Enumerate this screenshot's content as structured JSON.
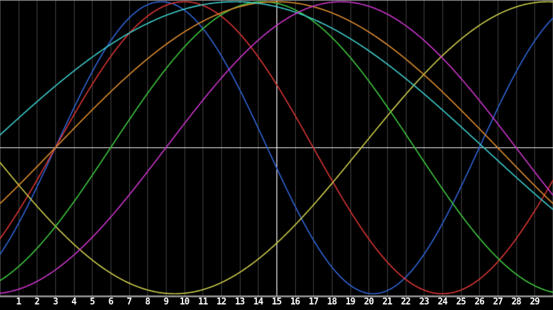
{
  "chart_data": {
    "type": "line",
    "title": "",
    "description": "Seven full-height sine waves of different periods and phases on a black background, with vertical gray gridlines at every x unit, a white horizontal zero axis, a white vertical line at x=15, gray top and bottom borders, and numeric x tick labels below the axis bar.",
    "formula": "y = sin(2*PI*(x - zero_cross_up)/period), x in axis units",
    "x_axis": {
      "range_units": [
        0,
        30
      ],
      "tick_labels": [
        "1",
        "2",
        "3",
        "4",
        "5",
        "6",
        "7",
        "8",
        "9",
        "10",
        "11",
        "12",
        "13",
        "14",
        "15",
        "16",
        "17",
        "18",
        "19",
        "20",
        "21",
        "22",
        "23",
        "24",
        "25",
        "26",
        "27",
        "28",
        "29"
      ],
      "grid": true
    },
    "y_axis": {
      "range": [
        -1,
        1
      ],
      "axis_line_value": 0,
      "grid": false
    },
    "crosshair": {
      "vertical_line_x_units": 15,
      "horizontal_line_y_value": 0
    },
    "series": [
      {
        "name": "blue-sine",
        "color": "#2f63d2",
        "period": 23,
        "zero_cross_up": 3,
        "amplitude": 1
      },
      {
        "name": "red-sine",
        "color": "#d63434",
        "period": 28,
        "zero_cross_up": 3,
        "amplitude": 1
      },
      {
        "name": "yellow-sine",
        "color": "#c9c94a",
        "period": 40.5,
        "zero_cross_up": 19.6,
        "amplitude": 1
      },
      {
        "name": "green-sine",
        "color": "#3dc53d",
        "period": 33,
        "zero_cross_up": 6,
        "amplitude": 1
      },
      {
        "name": "orange-sine",
        "color": "#d98a2e",
        "period": 48,
        "zero_cross_up": 3,
        "amplitude": 1
      },
      {
        "name": "cyan-sine",
        "color": "#3ccaca",
        "period": 54,
        "zero_cross_up": -0.75,
        "amplitude": 1
      },
      {
        "name": "magenta-sine",
        "color": "#ca35ca",
        "period": 38,
        "zero_cross_up": 9,
        "amplitude": 1
      }
    ],
    "colors": {
      "background": "#000000",
      "grid": "#454545",
      "border": "#9a9a9a",
      "axis_line": "#ffffff",
      "tick_label": "#ffffff"
    },
    "legend": {
      "visible": false
    }
  }
}
